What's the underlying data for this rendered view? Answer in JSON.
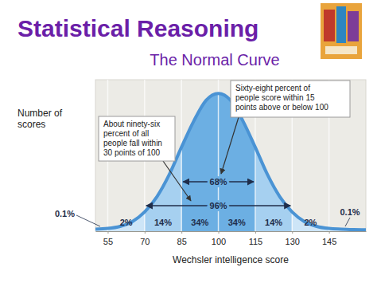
{
  "chart_data": {
    "type": "area",
    "title": "Statistical Reasoning",
    "subtitle": "The Normal Curve",
    "x_label": "Wechsler intelligence score",
    "y_label": "Number of scores",
    "x": [
      50,
      55,
      60,
      65,
      70,
      75,
      80,
      85,
      90,
      95,
      100,
      105,
      110,
      115,
      120,
      125,
      130,
      135,
      140,
      145,
      150,
      155,
      160
    ],
    "values": [
      1.5,
      2,
      3.5,
      7,
      14,
      25,
      41,
      61,
      80,
      95,
      100,
      95,
      80,
      61,
      41,
      25,
      14,
      7,
      3.5,
      2,
      1.5,
      1.2,
      1
    ],
    "color": "#4a93d4",
    "xlim": [
      50,
      160
    ],
    "xticks": [
      55,
      70,
      85,
      100,
      115,
      130,
      145
    ],
    "ylim": [
      0,
      110
    ],
    "tick_labels": "x",
    "grid": true,
    "regions": [
      {
        "from": 50,
        "to": 55,
        "value": 0.1,
        "label": "0.1%",
        "color": "#deedf9"
      },
      {
        "from": 55,
        "to": 70,
        "value": 2,
        "label": "2%",
        "color": "#cde5f7"
      },
      {
        "from": 70,
        "to": 85,
        "value": 14,
        "label": "14%",
        "color": "#a6d0f0"
      },
      {
        "from": 85,
        "to": 100,
        "value": 34,
        "label": "34%",
        "color": "#6cafe3"
      },
      {
        "from": 100,
        "to": 115,
        "value": 34,
        "label": "34%",
        "color": "#6cafe3"
      },
      {
        "from": 115,
        "to": 130,
        "value": 14,
        "label": "14%",
        "color": "#a6d0f0"
      },
      {
        "from": 130,
        "to": 145,
        "value": 2,
        "label": "2%",
        "color": "#cde5f7"
      },
      {
        "from": 145,
        "to": 160,
        "value": 0.1,
        "label": "0.1%",
        "color": "#deedf9"
      }
    ],
    "spans": [
      {
        "from": 85,
        "to": 115,
        "value": 68,
        "label": "68%"
      },
      {
        "from": 70,
        "to": 130,
        "value": 96,
        "label": "96%"
      }
    ],
    "annotations": [
      {
        "lines": [
          "Sixty-eight percent of",
          "people score within 15",
          "points above or below 100"
        ]
      },
      {
        "lines": [
          "About ninety-six",
          "percent of all",
          "people fall within",
          "30 points of 100"
        ]
      }
    ]
  }
}
